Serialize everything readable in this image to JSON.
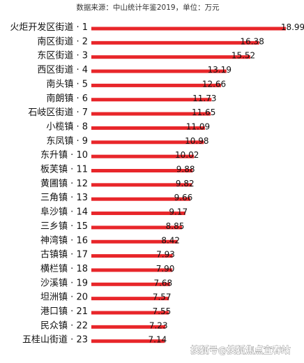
{
  "chart_data": {
    "type": "bar",
    "orientation": "horizontal",
    "subtitle": "数据来源：中山统计年鉴2019，单位：万元",
    "xlabel": "",
    "ylabel": "",
    "xlim": [
      0,
      19.5
    ],
    "grid": false,
    "legend": "none",
    "bar_color": "#e8262a",
    "categories": [
      "火炬开发区街道 · 1",
      "南区街道 · 2",
      "东区街道 · 3",
      "西区街道 · 4",
      "南头镇 · 5",
      "南朗镇 · 6",
      "石岐区街道 · 7",
      "小榄镇 · 8",
      "东凤镇 · 9",
      "东升镇 · 10",
      "板芙镇 · 11",
      "黄圃镇 · 12",
      "三角镇 · 13",
      "阜沙镇 · 14",
      "三乡镇 · 15",
      "神湾镇 · 16",
      "古镇镇 · 17",
      "横栏镇 · 18",
      "沙溪镇 · 19",
      "坦洲镇 · 20",
      "港口镇 · 21",
      "民众镇 · 22",
      "五桂山街道 · 23"
    ],
    "values": [
      18.99,
      16.38,
      15.52,
      13.19,
      12.66,
      11.73,
      11.65,
      11.09,
      10.98,
      10.02,
      9.88,
      9.82,
      9.66,
      9.17,
      8.85,
      8.42,
      7.93,
      7.9,
      7.68,
      7.57,
      7.55,
      7.23,
      7.14
    ],
    "value_labels": [
      "18.99",
      "16.38",
      "15.52",
      "13.19",
      "12.66",
      "11.73",
      "11.65",
      "11.09",
      "10.98",
      "10.02",
      "9.88",
      "9.82",
      "9.66",
      "9.17",
      "8.85",
      "8.42",
      "7.93",
      "7.90",
      "7.68",
      "7.57",
      "7.55",
      "7.23",
      "7.14"
    ]
  },
  "watermark": "搜狐号@搜狐焦点宜春站"
}
